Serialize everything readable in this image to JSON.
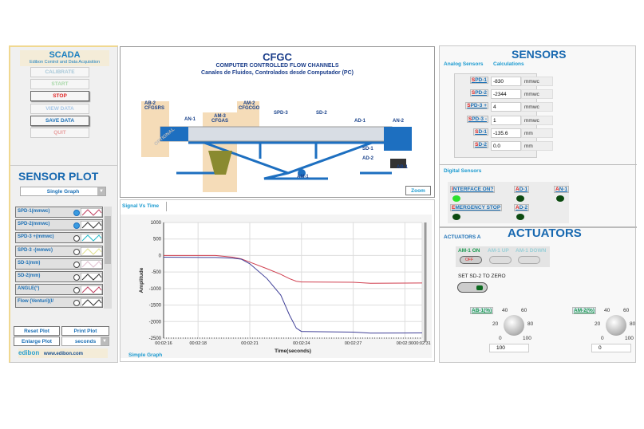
{
  "scada": {
    "title": "SCADA",
    "subtitle": "Edibon Control and Data Acquisition",
    "buttons": [
      {
        "label": "CALIBRATE",
        "color": "#a8c8d8"
      },
      {
        "label": "START",
        "color": "#a8d8a8"
      },
      {
        "label": "STOP",
        "color": "#e02020"
      },
      {
        "label": "VIEW DATA",
        "color": "#a8c8e8"
      },
      {
        "label": "SAVE DATA",
        "color": "#1a6fb5"
      },
      {
        "label": "QUIT",
        "color": "#e8a0a0"
      }
    ]
  },
  "sensor_plot": {
    "title": "SENSOR PLOT",
    "mode": "Single Graph",
    "items": [
      {
        "label": "SPD-1(mmwc)",
        "selected": true,
        "color": "#c04060"
      },
      {
        "label": "SPD-2(mmwc)",
        "selected": true,
        "color": "#303030"
      },
      {
        "label": "SPD-3 +(mmwc)",
        "selected": false,
        "color": "#20b8c8"
      },
      {
        "label": "SPD-3 -(mmwc)",
        "selected": false,
        "color": "#e0e090"
      },
      {
        "label": "SD-1(mm)",
        "selected": false,
        "color": "#e0c0d0"
      },
      {
        "label": "SD-2(mm)",
        "selected": false,
        "color": "#303030"
      },
      {
        "label": "ANGLE(°)",
        "selected": false,
        "color": "#c04060"
      },
      {
        "label": "Flow (Venturi)(l/",
        "selected": false,
        "color": "#303030"
      }
    ],
    "reset": "Reset Plot",
    "print": "Print Plot",
    "enlarge": "Enlarge Plot",
    "units": "seconds",
    "logo": "edibon",
    "website": "www.edibon.com"
  },
  "diagram": {
    "title": "CFGC",
    "subtitle": "COMPUTER CONTROLLED FLOW CHANNELS",
    "subtitle2": "Canales de Fluidos, Controlados desde Computador (PC)",
    "labels": {
      "ab2": "AB-2",
      "cfgsrs": "CFGSRS",
      "an1": "AN-1",
      "am3": "AM-3",
      "cfgas": "CFGAS",
      "am2": "AM-2",
      "cfgcgo": "CFGCGO",
      "spd3": "SPD-3",
      "sd2": "SD-2",
      "ad1": "AD-1",
      "an2": "AN-2",
      "sd1": "SD-1",
      "ad2": "AD-2",
      "ab1": "AB-1",
      "am1": "AM-1",
      "optional": "OPTIONAL"
    },
    "zoom": "Zoom"
  },
  "chart_tabs": {
    "tab": "Signal Vs Time",
    "bottom": "Simple Graph"
  },
  "chart_data": {
    "type": "line",
    "xlabel": "Time(seconds)",
    "ylabel": "Amplitude",
    "ylim": [
      -2500,
      1000
    ],
    "yticks": [
      1000,
      500,
      0,
      -500,
      -1000,
      -1500,
      -2000,
      -2500
    ],
    "xlim": [
      "00:02:16",
      "00:02:31"
    ],
    "xticks": [
      "00:02:16",
      "00:02:18",
      "00:02:21",
      "00:02:24",
      "00:02:27",
      "00:02:30",
      "00:02:31"
    ],
    "grid": true,
    "x": [
      "00:02:16",
      "00:02:19",
      "00:02:20",
      "00:02:20.5",
      "00:02:21",
      "00:02:22",
      "00:02:22.8",
      "00:02:23.3",
      "00:02:23.7",
      "00:02:24",
      "00:02:27",
      "00:02:28",
      "00:02:31"
    ],
    "series": [
      {
        "color": "#d04050",
        "values": [
          0,
          0,
          -50,
          -100,
          -200,
          -400,
          -570,
          -700,
          -780,
          -800,
          -810,
          -840,
          -830
        ]
      },
      {
        "color": "#404098",
        "values": [
          -50,
          -60,
          -80,
          -110,
          -250,
          -700,
          -1200,
          -1800,
          -2200,
          -2300,
          -2320,
          -2350,
          -2344
        ]
      }
    ]
  },
  "sensors": {
    "title": "SENSORS",
    "tabs": [
      "Analog Sensors",
      "Calculations"
    ],
    "analog": [
      {
        "name": "SPD-1",
        "value": "-830",
        "unit": "mmwc"
      },
      {
        "name": "SPD-2",
        "value": "-2344",
        "unit": "mmwc"
      },
      {
        "name": "SPD-3 +",
        "value": "4",
        "unit": "mmwc"
      },
      {
        "name": "SPD-3 -",
        "value": "1",
        "unit": "mmwc"
      },
      {
        "name": "SD-1",
        "value": "-135.6",
        "unit": "mm"
      },
      {
        "name": "SD-2",
        "value": "0.0",
        "unit": "mm"
      }
    ],
    "digital_tab": "Digital Sensors",
    "digital": [
      {
        "name": "INTERFACE ON?",
        "on": true
      },
      {
        "name": "AD-1",
        "on": false
      },
      {
        "name": "AN-1",
        "on": false
      },
      {
        "name": "EMERGENCY STOP",
        "on": false
      },
      {
        "name": "AD-2",
        "on": false
      }
    ]
  },
  "actuators": {
    "title": "ACTUATORS",
    "tab": "ACTUATORS A",
    "am1_on": "AM-1 ON",
    "am1_up": "AM-1 UP",
    "am1_down": "AM-1 DOWN",
    "off": "OFF",
    "set_sd2": "SET SD-2 TO ZERO",
    "knobs": [
      {
        "label": "AB-1(%)",
        "value": "100",
        "level": 100
      },
      {
        "label": "AM-2(%)",
        "value": "0",
        "level": 0
      }
    ],
    "knob_scale": [
      "0",
      "20",
      "40",
      "60",
      "80",
      "100"
    ]
  }
}
